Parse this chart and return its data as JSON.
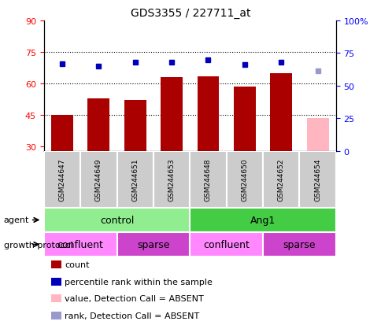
{
  "title": "GDS3355 / 227711_at",
  "samples": [
    "GSM244647",
    "GSM244649",
    "GSM244651",
    "GSM244653",
    "GSM244648",
    "GSM244650",
    "GSM244652",
    "GSM244654"
  ],
  "count_values": [
    45.0,
    53.0,
    52.0,
    63.0,
    63.5,
    58.5,
    65.0,
    43.5
  ],
  "rank_values": [
    67.0,
    65.0,
    68.0,
    68.0,
    70.0,
    66.0,
    68.0,
    61.0
  ],
  "absent_flags": [
    false,
    false,
    false,
    false,
    false,
    false,
    false,
    true
  ],
  "ylim_left": [
    28,
    90
  ],
  "ylim_right": [
    0,
    100
  ],
  "yticks_left": [
    30,
    45,
    60,
    75,
    90
  ],
  "yticks_right": [
    0,
    25,
    50,
    75,
    100
  ],
  "ytick_labels_left": [
    "30",
    "45",
    "60",
    "75",
    "90"
  ],
  "ytick_labels_right": [
    "0",
    "25",
    "50",
    "75",
    "100%"
  ],
  "hlines": [
    45,
    60,
    75
  ],
  "bar_color": "#AA0000",
  "bar_absent_color": "#FFB6C1",
  "rank_color": "#0000BB",
  "rank_absent_color": "#9999CC",
  "sample_bg_color": "#CCCCCC",
  "agent_groups": [
    {
      "label": "control",
      "start": 0,
      "end": 4,
      "color": "#90EE90"
    },
    {
      "label": "Ang1",
      "start": 4,
      "end": 8,
      "color": "#44CC44"
    }
  ],
  "protocol_groups": [
    {
      "label": "confluent",
      "start": 0,
      "end": 2,
      "color": "#FF66FF"
    },
    {
      "label": "sparse",
      "start": 2,
      "end": 4,
      "color": "#CC44CC"
    },
    {
      "label": "confluent",
      "start": 4,
      "end": 6,
      "color": "#FF66FF"
    },
    {
      "label": "sparse",
      "start": 6,
      "end": 8,
      "color": "#CC44CC"
    }
  ],
  "legend_items": [
    {
      "label": "count",
      "color": "#AA0000"
    },
    {
      "label": "percentile rank within the sample",
      "color": "#0000BB"
    },
    {
      "label": "value, Detection Call = ABSENT",
      "color": "#FFB6C1"
    },
    {
      "label": "rank, Detection Call = ABSENT",
      "color": "#9999CC"
    }
  ],
  "figsize": [
    4.85,
    4.14
  ],
  "dpi": 100
}
